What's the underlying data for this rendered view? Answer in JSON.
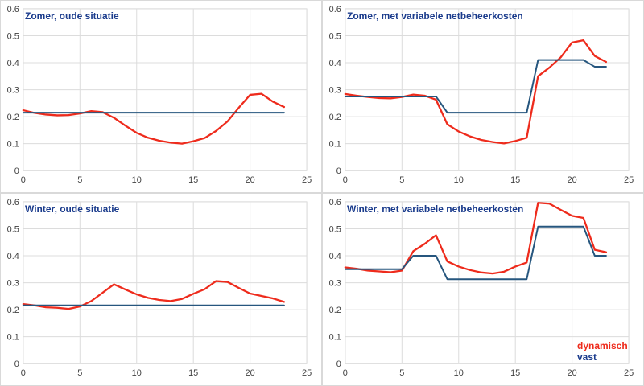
{
  "page": {
    "background": "#ffffff"
  },
  "colors": {
    "dynamisch_line": "#ee2b1c",
    "vast_line": "#26567e",
    "title_text": "#1a3b8c",
    "gridline": "#dcdcdc",
    "tick_text": "#404040",
    "panel_border": "#d9d9d9"
  },
  "legend": {
    "dynamisch": "dynamisch",
    "vast": "vast"
  },
  "hours": [
    0,
    1,
    2,
    3,
    4,
    5,
    6,
    7,
    8,
    9,
    10,
    11,
    12,
    13,
    14,
    15,
    16,
    17,
    18,
    19,
    20,
    21,
    22,
    23
  ],
  "chart_data": [
    {
      "type": "line",
      "title": "Zomer, oude situatie",
      "xlabel": "",
      "ylabel": "",
      "xlim": [
        0,
        25
      ],
      "ylim": [
        0,
        0.6
      ],
      "xticks": [
        0,
        5,
        10,
        15,
        20,
        25
      ],
      "yticks": [
        0,
        0.1,
        0.2,
        0.3,
        0.4,
        0.5,
        0.6
      ],
      "grid": true,
      "legend_visible": false,
      "series": [
        {
          "name": "dynamisch",
          "color": "#ee2b1c",
          "values": [
            0.224,
            0.214,
            0.208,
            0.205,
            0.206,
            0.212,
            0.221,
            0.217,
            0.196,
            0.167,
            0.14,
            0.122,
            0.111,
            0.104,
            0.1,
            0.109,
            0.121,
            0.147,
            0.182,
            0.233,
            0.281,
            0.285,
            0.256,
            0.236
          ]
        },
        {
          "name": "vast",
          "color": "#26567e",
          "values": [
            0.215,
            0.215,
            0.215,
            0.215,
            0.215,
            0.215,
            0.215,
            0.215,
            0.215,
            0.215,
            0.215,
            0.215,
            0.215,
            0.215,
            0.215,
            0.215,
            0.215,
            0.215,
            0.215,
            0.215,
            0.215,
            0.215,
            0.215,
            0.215
          ]
        }
      ]
    },
    {
      "type": "line",
      "title": "Zomer, met variabele netbeheerkosten",
      "xlabel": "",
      "ylabel": "",
      "xlim": [
        0,
        25
      ],
      "ylim": [
        0,
        0.6
      ],
      "xticks": [
        0,
        5,
        10,
        15,
        20,
        25
      ],
      "yticks": [
        0,
        0.1,
        0.2,
        0.3,
        0.4,
        0.5,
        0.6
      ],
      "grid": true,
      "legend_visible": false,
      "series": [
        {
          "name": "dynamisch",
          "color": "#ee2b1c",
          "values": [
            0.284,
            0.278,
            0.273,
            0.269,
            0.268,
            0.273,
            0.282,
            0.278,
            0.263,
            0.172,
            0.145,
            0.127,
            0.114,
            0.106,
            0.101,
            0.11,
            0.122,
            0.35,
            0.382,
            0.42,
            0.475,
            0.483,
            0.425,
            0.403
          ]
        },
        {
          "name": "vast",
          "color": "#26567e",
          "values": [
            0.275,
            0.275,
            0.275,
            0.275,
            0.275,
            0.275,
            0.275,
            0.275,
            0.275,
            0.215,
            0.215,
            0.215,
            0.215,
            0.215,
            0.215,
            0.215,
            0.215,
            0.41,
            0.41,
            0.41,
            0.41,
            0.41,
            0.385,
            0.385
          ]
        }
      ]
    },
    {
      "type": "line",
      "title": "Winter, oude situatie",
      "xlabel": "",
      "ylabel": "",
      "xlim": [
        0,
        25
      ],
      "ylim": [
        0,
        0.6
      ],
      "xticks": [
        0,
        5,
        10,
        15,
        20,
        25
      ],
      "yticks": [
        0,
        0.1,
        0.2,
        0.3,
        0.4,
        0.5,
        0.6
      ],
      "grid": true,
      "legend_visible": false,
      "series": [
        {
          "name": "dynamisch",
          "color": "#ee2b1c",
          "values": [
            0.221,
            0.216,
            0.209,
            0.207,
            0.203,
            0.212,
            0.232,
            0.263,
            0.294,
            0.275,
            0.257,
            0.244,
            0.236,
            0.232,
            0.24,
            0.259,
            0.276,
            0.306,
            0.303,
            0.281,
            0.26,
            0.251,
            0.242,
            0.229
          ]
        },
        {
          "name": "vast",
          "color": "#26567e",
          "values": [
            0.216,
            0.216,
            0.216,
            0.216,
            0.216,
            0.216,
            0.216,
            0.216,
            0.216,
            0.216,
            0.216,
            0.216,
            0.216,
            0.216,
            0.216,
            0.216,
            0.216,
            0.216,
            0.216,
            0.216,
            0.216,
            0.216,
            0.216,
            0.216
          ]
        }
      ]
    },
    {
      "type": "line",
      "title": "Winter, met variabele netbeheerkosten",
      "xlabel": "",
      "ylabel": "",
      "xlim": [
        0,
        25
      ],
      "ylim": [
        0,
        0.6
      ],
      "xticks": [
        0,
        5,
        10,
        15,
        20,
        25
      ],
      "yticks": [
        0,
        0.1,
        0.2,
        0.3,
        0.4,
        0.5,
        0.6
      ],
      "grid": true,
      "legend_visible": true,
      "legend_position": "bottom-right-inside",
      "series": [
        {
          "name": "dynamisch",
          "color": "#ee2b1c",
          "values": [
            0.357,
            0.352,
            0.345,
            0.342,
            0.339,
            0.345,
            0.417,
            0.444,
            0.476,
            0.379,
            0.36,
            0.347,
            0.338,
            0.334,
            0.341,
            0.36,
            0.375,
            0.596,
            0.593,
            0.57,
            0.548,
            0.54,
            0.422,
            0.413
          ]
        },
        {
          "name": "vast",
          "color": "#26567e",
          "values": [
            0.35,
            0.35,
            0.35,
            0.35,
            0.35,
            0.35,
            0.4,
            0.4,
            0.4,
            0.313,
            0.313,
            0.313,
            0.313,
            0.313,
            0.313,
            0.313,
            0.313,
            0.508,
            0.508,
            0.508,
            0.508,
            0.508,
            0.4,
            0.4
          ]
        }
      ]
    }
  ]
}
